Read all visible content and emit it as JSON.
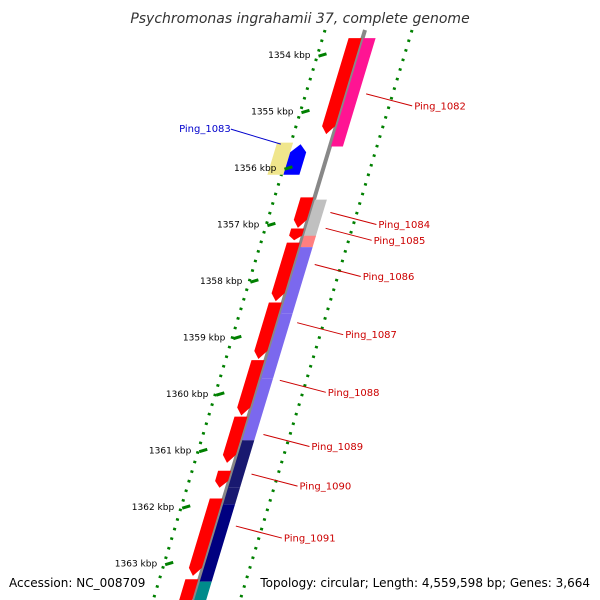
{
  "title": "Psychromonas ingrahamii 37, complete genome",
  "accession": "Accession: NC_008709",
  "topology": "Topology: circular; Length: 4,559,598 bp; Genes: 3,664",
  "colors": {
    "forward_cds": "#ff0000",
    "label_forward": "#cc0000",
    "label_selected": "#0000cc",
    "backbone": "#888888",
    "tick": "#008000"
  },
  "axis": {
    "ticks": [
      {
        "label": "1354 kbp",
        "kbp": 1354
      },
      {
        "label": "1355 kbp",
        "kbp": 1355
      },
      {
        "label": "1356 kbp",
        "kbp": 1356
      },
      {
        "label": "1357 kbp",
        "kbp": 1357
      },
      {
        "label": "1358 kbp",
        "kbp": 1358
      },
      {
        "label": "1359 kbp",
        "kbp": 1359
      },
      {
        "label": "1360 kbp",
        "kbp": 1360
      },
      {
        "label": "1361 kbp",
        "kbp": 1361
      },
      {
        "label": "1362 kbp",
        "kbp": 1362
      },
      {
        "label": "1363 kbp",
        "kbp": 1363
      }
    ]
  },
  "features": {
    "forward": [
      {
        "start": 1353.7,
        "end": 1355.4
      },
      {
        "start": 1356.52,
        "end": 1357.06
      },
      {
        "start": 1357.07,
        "end": 1357.28
      },
      {
        "start": 1357.32,
        "end": 1358.36
      },
      {
        "start": 1358.38,
        "end": 1359.38
      },
      {
        "start": 1359.4,
        "end": 1360.38
      },
      {
        "start": 1360.4,
        "end": 1361.22
      },
      {
        "start": 1361.36,
        "end": 1361.66
      },
      {
        "start": 1361.85,
        "end": 1363.22
      },
      {
        "start": 1363.28,
        "end": 1363.9
      }
    ],
    "reverse": [
      {
        "name": "Ping_1082",
        "start": 1353.7,
        "end": 1355.62,
        "color": "#ff1493"
      },
      {
        "name": "Ping_1084",
        "start": 1356.56,
        "end": 1357.22,
        "color": "#c0c0c0"
      },
      {
        "name": "Ping_1085",
        "start": 1357.2,
        "end": 1357.4,
        "color": "#ff7f7f"
      },
      {
        "name": "Ping_1086",
        "start": 1357.4,
        "end": 1358.58,
        "color": "#7b68ee"
      },
      {
        "name": "Ping_1087",
        "start": 1358.58,
        "end": 1359.72,
        "color": "#7b68ee"
      },
      {
        "name": "Ping_1088",
        "start": 1359.72,
        "end": 1360.82,
        "color": "#7b68ee"
      },
      {
        "name": "Ping_1089",
        "start": 1360.82,
        "end": 1361.66,
        "color": "#191970"
      },
      {
        "name": "Ping_1090",
        "start": 1361.66,
        "end": 1361.95,
        "color": "#191970"
      },
      {
        "name": "Ping_1091",
        "start": 1361.95,
        "end": 1363.32,
        "color": "#000080"
      },
      {
        "name": "",
        "start": 1363.32,
        "end": 1363.9,
        "color": "#008b8b"
      }
    ],
    "selected": [
      {
        "name": "Ping_1083",
        "start": 1355.55,
        "end": 1356.12,
        "color": "#f0e68c"
      },
      {
        "name": "",
        "start": 1355.58,
        "end": 1356.12,
        "color": "#0000ff"
      }
    ]
  },
  "labels": [
    {
      "text": "Ping_1082",
      "kbp": 1354.9,
      "side": "right"
    },
    {
      "text": "Ping_1083",
      "kbp": 1355.33,
      "side": "left"
    },
    {
      "text": "Ping_1084",
      "kbp": 1357.0,
      "side": "right"
    },
    {
      "text": "Ping_1085",
      "kbp": 1357.28,
      "side": "right"
    },
    {
      "text": "Ping_1086",
      "kbp": 1357.92,
      "side": "right"
    },
    {
      "text": "Ping_1087",
      "kbp": 1358.95,
      "side": "right"
    },
    {
      "text": "Ping_1088",
      "kbp": 1359.97,
      "side": "right"
    },
    {
      "text": "Ping_1089",
      "kbp": 1360.93,
      "side": "right"
    },
    {
      "text": "Ping_1090",
      "kbp": 1361.63,
      "side": "right"
    },
    {
      "text": "Ping_1091",
      "kbp": 1362.55,
      "side": "right"
    }
  ]
}
